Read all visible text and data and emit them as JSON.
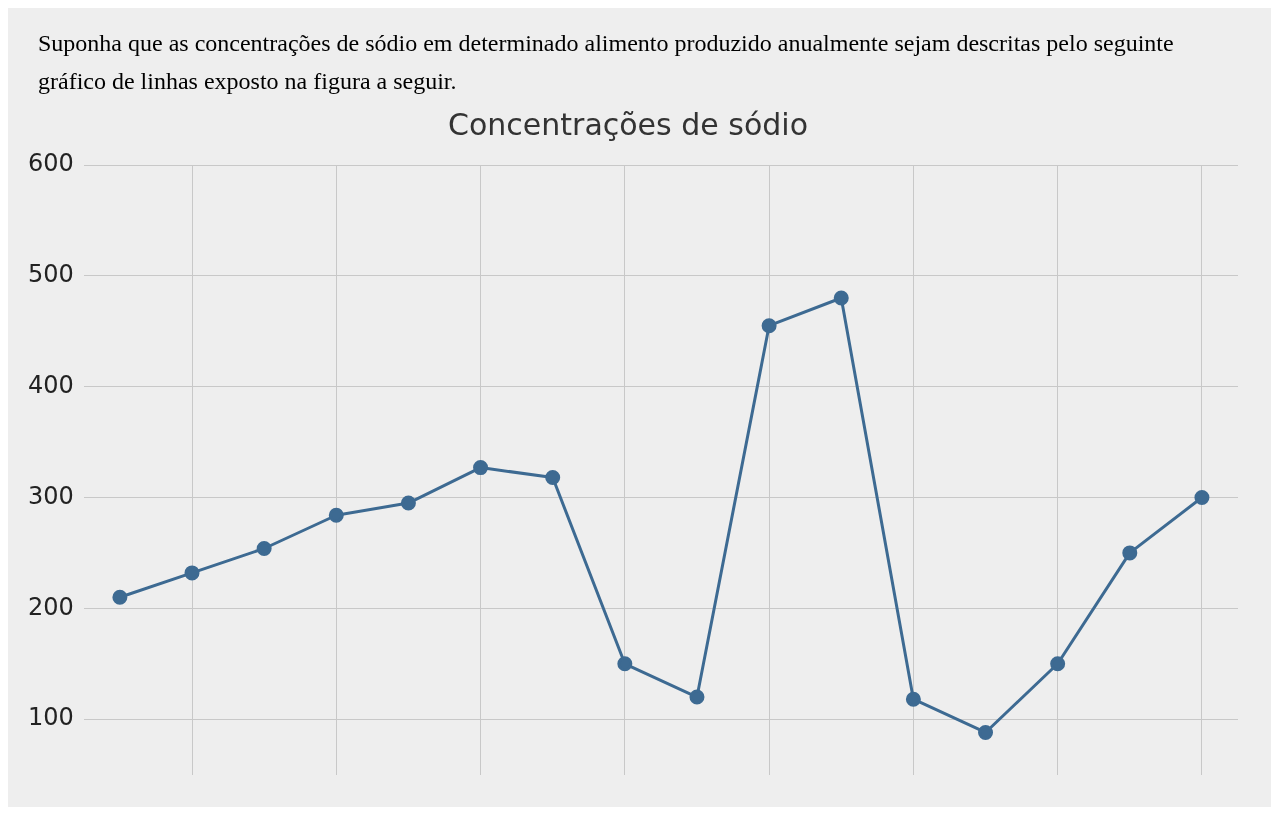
{
  "chart_data": {
    "type": "line",
    "title": "Concentrações de sódio",
    "annotations": [
      "Suponha que as concentrações de sódio em determinado alimento produzido anualmente sejam descritas pelo seguinte gráfico de linhas exposto na figura a seguir."
    ],
    "categories": [
      null,
      null,
      null,
      null,
      null,
      null,
      null,
      null,
      null,
      null,
      null,
      null,
      null,
      null,
      null,
      null
    ],
    "series": [
      {
        "color": "#3d6a92",
        "values": [
          210,
          232,
          254,
          284,
          295,
          327,
          318,
          150,
          120,
          455,
          480,
          118,
          88,
          150,
          250,
          300
        ]
      }
    ],
    "ylim": [
      50,
      600
    ],
    "yticks": [
      100,
      200,
      300,
      400,
      500,
      600
    ],
    "grid": true,
    "legend": false,
    "marker": "circle",
    "line_style": "solid"
  }
}
